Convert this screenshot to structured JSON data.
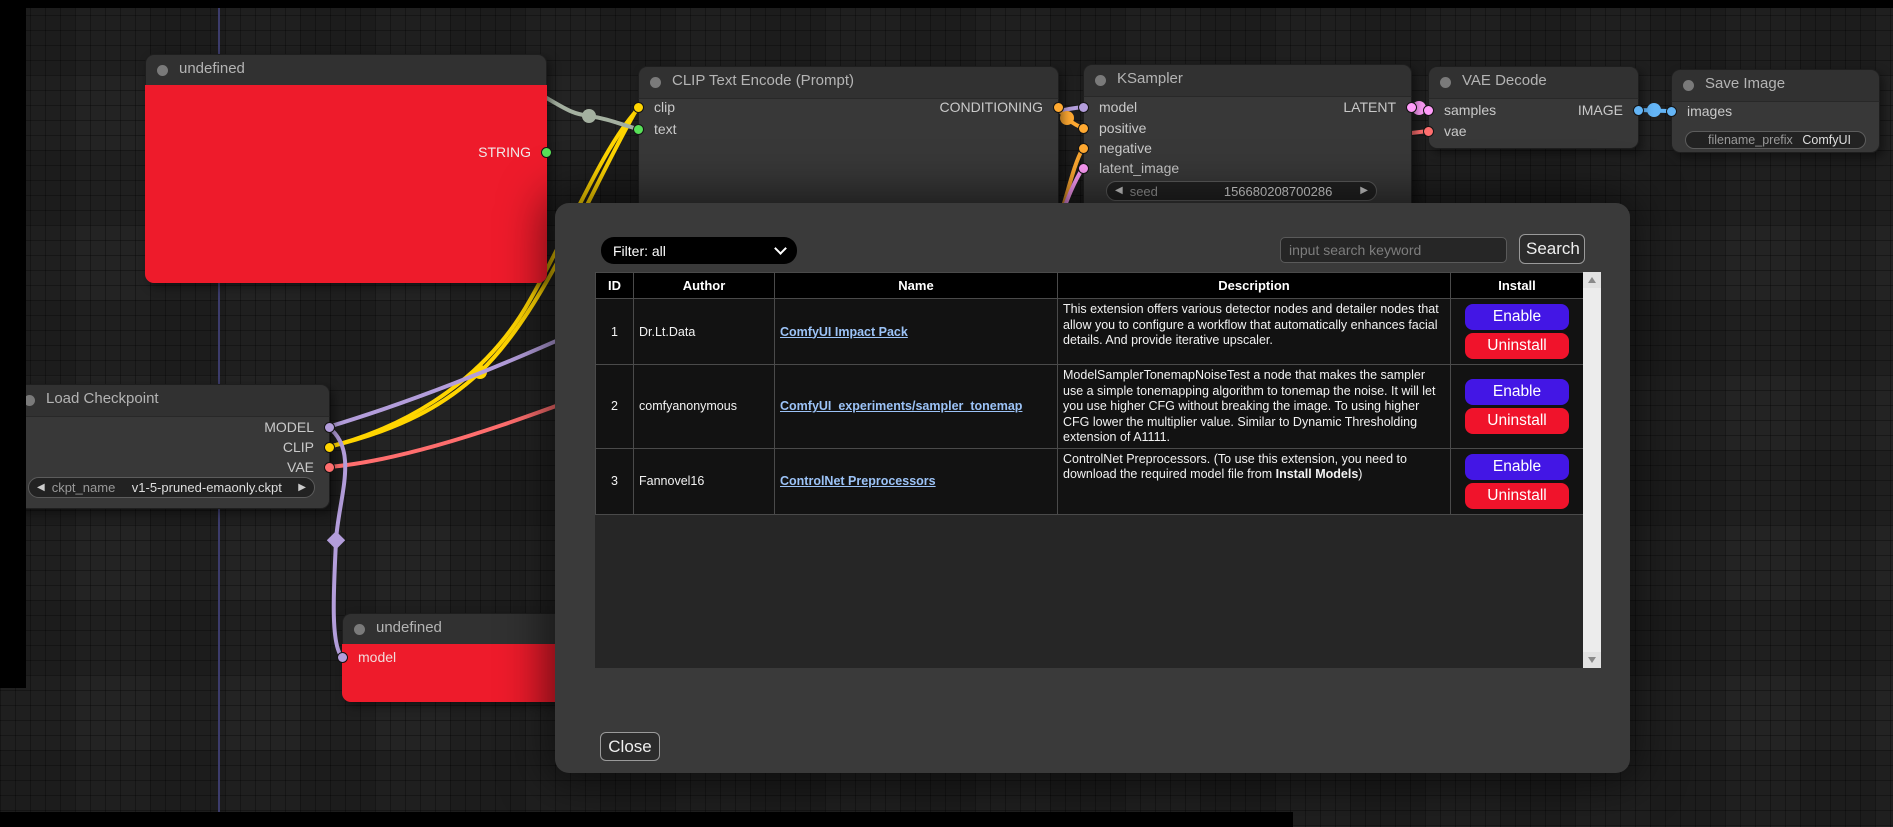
{
  "canvas": {
    "nodes": {
      "undefined_top": {
        "title": "undefined",
        "output": "STRING"
      },
      "clip_text_encode": {
        "title": "CLIP Text Encode (Prompt)",
        "inputs": [
          "clip",
          "text"
        ],
        "output": "CONDITIONING"
      },
      "ksampler": {
        "title": "KSampler",
        "inputs": [
          "model",
          "positive",
          "negative",
          "latent_image"
        ],
        "output": "LATENT",
        "seed_label": "seed",
        "seed_value": "156680208700286"
      },
      "vae_decode": {
        "title": "VAE Decode",
        "inputs": [
          "samples",
          "vae"
        ],
        "output": "IMAGE"
      },
      "save_image": {
        "title": "Save Image",
        "input": "images",
        "widget_label": "filename_prefix",
        "widget_value": "ComfyUI"
      },
      "load_checkpoint": {
        "title": "Load Checkpoint",
        "outputs": [
          "MODEL",
          "CLIP",
          "VAE"
        ],
        "widget_label": "ckpt_name",
        "widget_value": "v1-5-pruned-emaonly.ckpt"
      },
      "undefined_bottom": {
        "title": "undefined",
        "input": "model"
      }
    }
  },
  "modal": {
    "filter_label": "Filter: all",
    "search_placeholder": "input search keyword",
    "search_button": "Search",
    "close_button": "Close",
    "table": {
      "headers": [
        "ID",
        "Author",
        "Name",
        "Description",
        "Install"
      ],
      "rows": [
        {
          "id": "1",
          "author": "Dr.Lt.Data",
          "name": "ComfyUI Impact Pack",
          "description": [
            {
              "t": "This extension offers various detector nodes and detailer nodes that allow you to configure a workflow that automatically enhances facial details. And provide iterative upscaler.",
              "b": false
            }
          ],
          "buttons": [
            "Enable",
            "Uninstall"
          ]
        },
        {
          "id": "2",
          "author": "comfyanonymous",
          "name": "ComfyUI_experiments/sampler_tonemap",
          "description": [
            {
              "t": "ModelSamplerTonemapNoiseTest a node that makes the sampler use a simple tonemapping algorithm to tonemap the noise. It will let you use higher CFG without breaking the image. To using higher CFG lower the multiplier value. Similar to Dynamic Thresholding extension of A1111.",
              "b": false
            }
          ],
          "buttons": [
            "Enable",
            "Uninstall"
          ]
        },
        {
          "id": "3",
          "author": "Fannovel16",
          "name": "ControlNet Preprocessors",
          "description": [
            {
              "t": "ControlNet Preprocessors. (To use this extension, you need to download the required model file from ",
              "b": false
            },
            {
              "t": "Install Models",
              "b": true
            },
            {
              "t": ")",
              "b": false
            }
          ],
          "buttons": [
            "Enable",
            "Uninstall"
          ]
        }
      ]
    }
  },
  "colors": {
    "node_error_red": "#ee1b2b",
    "enable_button": "#4316e5",
    "uninstall_button": "#f0132b",
    "extension_link": "#9cc3f7",
    "slot_model": "#b39ddb",
    "slot_clip": "#ffd500",
    "slot_vae": "#ff6e6e",
    "slot_conditioning": "#ffa931",
    "slot_latent": "#ff9cf9",
    "slot_image": "#64b5f6",
    "slot_string": "#58e158",
    "wire_string": "#a4b0a0"
  }
}
